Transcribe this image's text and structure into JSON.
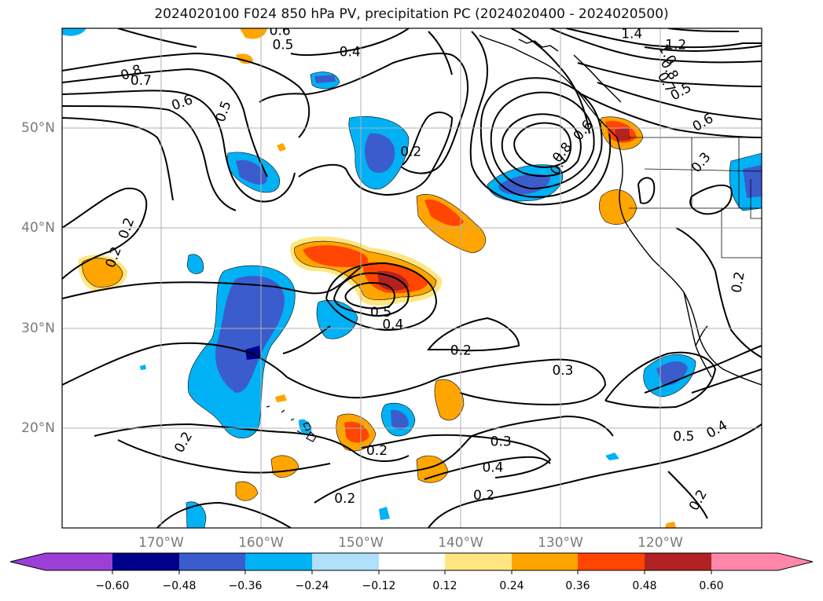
{
  "title": "2024020100 F024 850 hPa PV, precipitation PC (2024020400 - 2024020500)",
  "map": {
    "lat_ticks": [
      "20°N",
      "30°N",
      "40°N",
      "50°N"
    ],
    "lon_ticks": [
      "170°W",
      "160°W",
      "150°W",
      "140°W",
      "130°W",
      "120°W"
    ],
    "extent": {
      "lon": [
        -180,
        -110
      ],
      "lat": [
        10,
        60
      ]
    },
    "contour_labels": [
      {
        "text": "0.6",
        "lon": -158.2,
        "lat": 59.8,
        "rot": 0
      },
      {
        "text": "0.5",
        "lon": -157.9,
        "lat": 58.4,
        "rot": 0
      },
      {
        "text": "0.4",
        "lon": -151.2,
        "lat": 57.7,
        "rot": 0
      },
      {
        "text": "0.8",
        "lon": -173.1,
        "lat": 55.6,
        "rot": -20
      },
      {
        "text": "0.7",
        "lon": -172.1,
        "lat": 54.8,
        "rot": 0
      },
      {
        "text": "0.6",
        "lon": -168.0,
        "lat": 52.6,
        "rot": -20
      },
      {
        "text": "0.5",
        "lon": -163.9,
        "lat": 51.7,
        "rot": -70
      },
      {
        "text": "0.2",
        "lon": -145.1,
        "lat": 47.7,
        "rot": 0
      },
      {
        "text": "0.2",
        "lon": -173.6,
        "lat": 40.0,
        "rot": -70
      },
      {
        "text": "0.2",
        "lon": -174.9,
        "lat": 37.1,
        "rot": -70
      },
      {
        "text": "0.5",
        "lon": -148.1,
        "lat": 31.6,
        "rot": 0
      },
      {
        "text": "0.4",
        "lon": -146.9,
        "lat": 30.4,
        "rot": 0
      },
      {
        "text": "0.2",
        "lon": -140.1,
        "lat": 27.8,
        "rot": 0
      },
      {
        "text": "0.3",
        "lon": -129.9,
        "lat": 25.8,
        "rot": 0
      },
      {
        "text": "0.3",
        "lon": -136.1,
        "lat": 18.7,
        "rot": 0
      },
      {
        "text": "0.2",
        "lon": -148.5,
        "lat": 17.8,
        "rot": 0
      },
      {
        "text": "0.4",
        "lon": -136.9,
        "lat": 16.1,
        "rot": 0
      },
      {
        "text": "0.2",
        "lon": -137.8,
        "lat": 13.3,
        "rot": 0
      },
      {
        "text": "0.2",
        "lon": -151.7,
        "lat": 13.0,
        "rot": 0
      },
      {
        "text": "0.2",
        "lon": -167.9,
        "lat": 18.6,
        "rot": -60
      },
      {
        "text": "1.4",
        "lon": -123.0,
        "lat": 59.5,
        "rot": 0
      },
      {
        "text": "1.2",
        "lon": -118.6,
        "lat": 58.4,
        "rot": 0
      },
      {
        "text": "1.0",
        "lon": -119.4,
        "lat": 57.4,
        "rot": 60
      },
      {
        "text": "0.8",
        "lon": -119.2,
        "lat": 55.9,
        "rot": 60
      },
      {
        "text": "0.7",
        "lon": -119.5,
        "lat": 54.6,
        "rot": 60
      },
      {
        "text": "0.5",
        "lon": -118.1,
        "lat": 53.7,
        "rot": -30
      },
      {
        "text": "0.6",
        "lon": -115.9,
        "lat": 50.6,
        "rot": -30
      },
      {
        "text": "0.3",
        "lon": -116.1,
        "lat": 46.6,
        "rot": -50
      },
      {
        "text": "0.6",
        "lon": -127.9,
        "lat": 49.8,
        "rot": -50
      },
      {
        "text": "0.8",
        "lon": -130.0,
        "lat": 47.6,
        "rot": -50
      },
      {
        "text": "0.7",
        "lon": -130.3,
        "lat": 46.4,
        "rot": -60
      },
      {
        "text": "0.2",
        "lon": -112.4,
        "lat": 34.6,
        "rot": -80
      },
      {
        "text": "0.5",
        "lon": -117.8,
        "lat": 19.2,
        "rot": 0
      },
      {
        "text": "0.4",
        "lon": -114.5,
        "lat": 19.9,
        "rot": -30
      },
      {
        "text": "0.2",
        "lon": -116.4,
        "lat": 12.8,
        "rot": -60
      }
    ]
  },
  "colorbar": {
    "ticks": [
      "−0.60",
      "−0.48",
      "−0.36",
      "−0.24",
      "−0.12",
      "0.12",
      "0.24",
      "0.36",
      "0.48",
      "0.60"
    ],
    "colors": [
      "#9b3fd6",
      "#00008b",
      "#3b5ccc",
      "#00b2f5",
      "#b0e0fa",
      "#ffffff",
      "#ffe680",
      "#ffa500",
      "#ff4500",
      "#b22222",
      "#ff88aa"
    ]
  }
}
